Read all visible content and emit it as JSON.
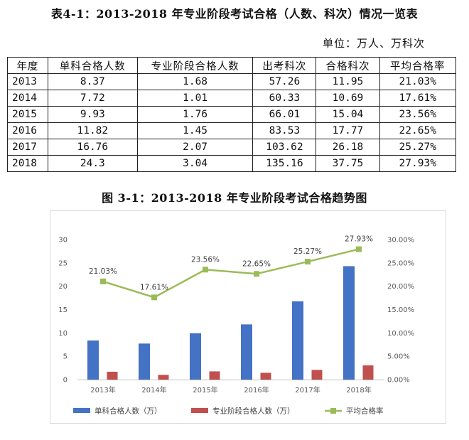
{
  "table_title": "表4-1：2013-2018 年专业阶段考试合格（人数、科次）情况一览表",
  "unit": "单位：万人、万科次",
  "table": {
    "headers": [
      "年度",
      "单科合格人数",
      "专业阶段合格人数",
      "出考科次",
      "合格科次",
      "平均合格率"
    ],
    "rows": [
      [
        "2013",
        "8.37",
        "1.68",
        "57.26",
        "11.95",
        "21.03%"
      ],
      [
        "2014",
        "7.72",
        "1.01",
        "60.33",
        "10.69",
        "17.61%"
      ],
      [
        "2015",
        "9.93",
        "1.76",
        "66.01",
        "15.04",
        "23.56%"
      ],
      [
        "2016",
        "11.82",
        "1.45",
        "83.53",
        "17.77",
        "22.65%"
      ],
      [
        "2017",
        "16.76",
        "2.07",
        "103.62",
        "26.18",
        "25.27%"
      ],
      [
        "2018",
        "24.3",
        "3.04",
        "135.16",
        "37.75",
        "27.93%"
      ]
    ]
  },
  "chart_title": "图 3-1：2013-2018 年专业阶段考试合格趋势图",
  "chart_data": {
    "type": "bar",
    "categories": [
      "2013年",
      "2014年",
      "2015年",
      "2016年",
      "2017年",
      "2018年"
    ],
    "series": [
      {
        "name": "单科合格人数（万）",
        "type": "bar",
        "axis": "left",
        "color": "#4472C4",
        "values": [
          8.37,
          7.72,
          9.93,
          11.82,
          16.76,
          24.3
        ]
      },
      {
        "name": "专业阶段合格人数（万）",
        "type": "bar",
        "axis": "left",
        "color": "#C0504D",
        "values": [
          1.68,
          1.01,
          1.76,
          1.45,
          2.07,
          3.04
        ]
      },
      {
        "name": "平均合格率",
        "type": "line",
        "axis": "right",
        "color": "#9BBB59",
        "values": [
          21.03,
          17.61,
          23.56,
          22.65,
          25.27,
          27.93
        ]
      }
    ],
    "line_labels": [
      "21.03%",
      "17.61%",
      "23.56%",
      "22.65%",
      "25.27%",
      "27.93%"
    ],
    "ylim": [
      0,
      30
    ],
    "yticks": [
      "0",
      "5",
      "10",
      "15",
      "20",
      "25",
      "30"
    ],
    "y2lim": [
      0,
      30
    ],
    "y2ticks": [
      "0.00%",
      "5.00%",
      "10.00%",
      "15.00%",
      "20.00%",
      "25.00%",
      "30.00%"
    ],
    "grid": false,
    "legend": "bottom"
  }
}
